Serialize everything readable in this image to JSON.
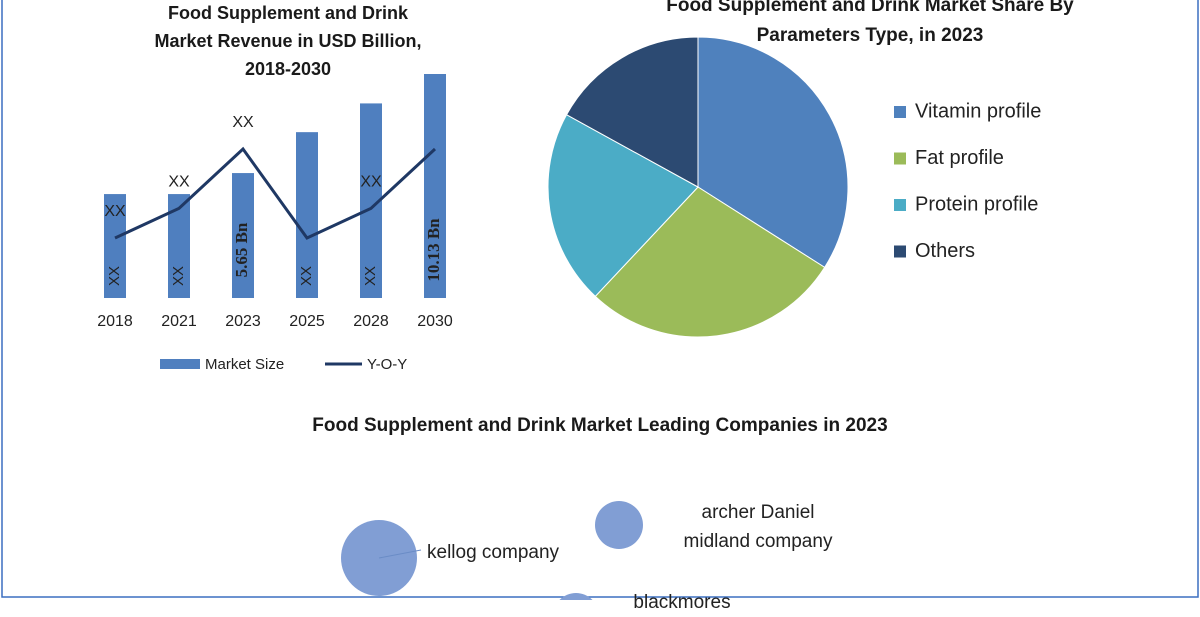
{
  "chart_data": [
    {
      "type": "bar",
      "title": "Food Supplement and Drink Market Revenue in USD Billion, 2018-2030",
      "categories": [
        "2018",
        "2021",
        "2023",
        "2025",
        "2028",
        "2030"
      ],
      "series": [
        {
          "name": "Market Size",
          "color": "#4f7fbf",
          "values": [
            4.7,
            4.7,
            5.65,
            7.5,
            8.8,
            10.13
          ],
          "value_labels": [
            "XX",
            "XX",
            "5.65 Bn",
            "XX",
            "XX",
            "10.13 Bn"
          ]
        },
        {
          "name": "Y-O-Y",
          "type": "line",
          "color": "#1f3864",
          "values": [
            3,
            5,
            9,
            3,
            5,
            9
          ],
          "value_labels": [
            "XX",
            "XX",
            "XX",
            null,
            "XX",
            null
          ]
        }
      ]
    },
    {
      "type": "pie",
      "title": "Food Supplement and Drink Market Share By Parameters Type, in 2023",
      "categories": [
        "Vitamin profile",
        "Fat profile",
        "Protein profile",
        "Others"
      ],
      "values": [
        34,
        28,
        21,
        17
      ],
      "colors": [
        "#4f81bd",
        "#9bbb59",
        "#4bacc6",
        "#2c4a72"
      ]
    },
    {
      "type": "bubble",
      "title": "Food Supplement and Drink Market Leading Companies in 2023",
      "categories": [
        "kellog company",
        "archer Daniel midland company",
        "blackmores"
      ],
      "color": "#819ed4"
    }
  ]
}
